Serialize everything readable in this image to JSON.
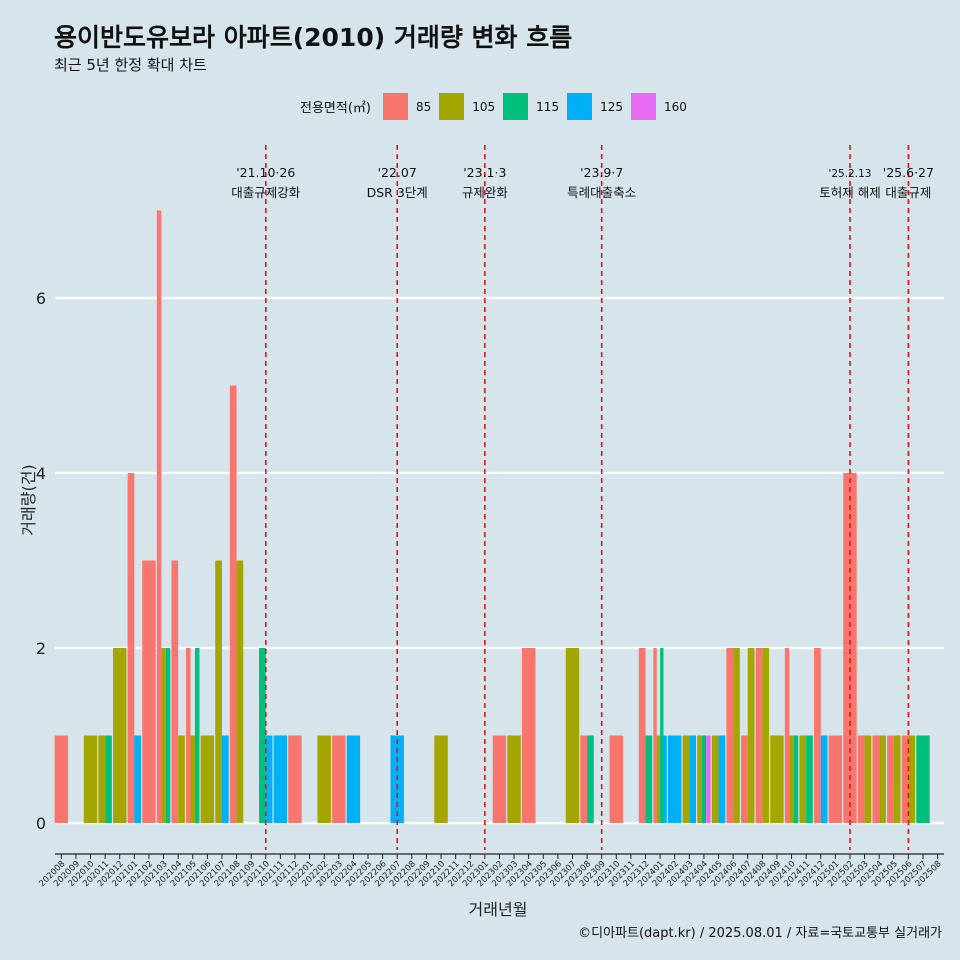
{
  "title": "용이반도유보라 아파트(2010) 거래량 변화 흐름",
  "subtitle": "최근 5년 한정 확대 차트",
  "caption": "©디아파트(dapt.kr) / 2025.08.01 / 자료=국토교통부 실거래가",
  "legend": {
    "title": "전용면적(㎡)",
    "items": [
      {
        "label": "85",
        "color": "#f8766d"
      },
      {
        "label": "105",
        "color": "#a3a500"
      },
      {
        "label": "115",
        "color": "#00bf7d"
      },
      {
        "label": "125",
        "color": "#00b0f6"
      },
      {
        "label": "160",
        "color": "#e76bf3"
      }
    ]
  },
  "chart_data": {
    "type": "bar",
    "xlabel": "거래년월",
    "ylabel": "거래량(건)",
    "ylim": [
      0,
      7
    ],
    "yticks": [
      0,
      2,
      4,
      6
    ],
    "grid": true,
    "legend_position": "top",
    "categories": [
      "202008",
      "202009",
      "202010",
      "202011",
      "202012",
      "202101",
      "202102",
      "202103",
      "202104",
      "202105",
      "202106",
      "202107",
      "202108",
      "202109",
      "202110",
      "202111",
      "202112",
      "202201",
      "202202",
      "202203",
      "202204",
      "202205",
      "202206",
      "202207",
      "202208",
      "202209",
      "202210",
      "202211",
      "202212",
      "202301",
      "202302",
      "202303",
      "202304",
      "202305",
      "202306",
      "202307",
      "202308",
      "202309",
      "202310",
      "202311",
      "202312",
      "202401",
      "202402",
      "202403",
      "202404",
      "202405",
      "202406",
      "202407",
      "202408",
      "202409",
      "202410",
      "202411",
      "202412",
      "202501",
      "202502",
      "202503",
      "202504",
      "202505",
      "202506",
      "202507",
      "202508"
    ],
    "series": [
      {
        "name": "85",
        "values": [
          1,
          0,
          0,
          0,
          0,
          4,
          3,
          7,
          3,
          2,
          0,
          0,
          5,
          0,
          0,
          0,
          1,
          0,
          0,
          1,
          0,
          0,
          0,
          0,
          0,
          0,
          0,
          0,
          0,
          0,
          1,
          0,
          2,
          0,
          0,
          0,
          1,
          0,
          1,
          0,
          2,
          2,
          0,
          0,
          0,
          0,
          2,
          1,
          2,
          0,
          2,
          0,
          2,
          1,
          4,
          1,
          1,
          1,
          1,
          0,
          0
        ]
      },
      {
        "name": "105",
        "values": [
          0,
          0,
          1,
          1,
          2,
          0,
          0,
          2,
          1,
          1,
          1,
          3,
          3,
          0,
          0,
          0,
          0,
          0,
          1,
          0,
          0,
          0,
          0,
          0,
          0,
          0,
          1,
          0,
          0,
          0,
          0,
          1,
          0,
          0,
          0,
          2,
          0,
          0,
          0,
          0,
          0,
          1,
          0,
          1,
          1,
          1,
          2,
          2,
          2,
          1,
          1,
          1,
          0,
          0,
          0,
          1,
          1,
          1,
          1,
          0,
          0
        ]
      },
      {
        "name": "115",
        "values": [
          0,
          0,
          0,
          1,
          0,
          0,
          0,
          2,
          0,
          2,
          0,
          0,
          0,
          0,
          2,
          0,
          0,
          0,
          0,
          0,
          0,
          0,
          0,
          0,
          0,
          0,
          0,
          0,
          0,
          0,
          0,
          0,
          0,
          0,
          0,
          0,
          1,
          0,
          0,
          0,
          1,
          2,
          0,
          0,
          1,
          0,
          0,
          0,
          0,
          0,
          1,
          1,
          0,
          0,
          0,
          0,
          0,
          0,
          0,
          1,
          0
        ]
      },
      {
        "name": "125",
        "values": [
          0,
          0,
          0,
          0,
          0,
          1,
          0,
          0,
          0,
          0,
          0,
          1,
          0,
          0,
          1,
          1,
          0,
          0,
          0,
          0,
          1,
          0,
          0,
          1,
          0,
          0,
          0,
          0,
          0,
          0,
          0,
          0,
          0,
          0,
          0,
          0,
          0,
          0,
          0,
          0,
          0,
          1,
          1,
          1,
          0,
          1,
          0,
          0,
          0,
          0,
          0,
          0,
          1,
          0,
          0,
          0,
          0,
          0,
          0,
          0,
          0
        ]
      },
      {
        "name": "160",
        "values": [
          0,
          0,
          0,
          0,
          0,
          0,
          0,
          0,
          0,
          0,
          0,
          0,
          0,
          0,
          0,
          0,
          0,
          0,
          0,
          0,
          0,
          0,
          0,
          0,
          0,
          0,
          0,
          0,
          0,
          0,
          0,
          0,
          0,
          0,
          0,
          0,
          0,
          0,
          0,
          0,
          0,
          0,
          0,
          0,
          1,
          0,
          0,
          0,
          0,
          0,
          0,
          0,
          0,
          0,
          0,
          0,
          0,
          0,
          0,
          0,
          0
        ]
      }
    ],
    "annotations": [
      {
        "month": "202110",
        "date": "'21.10·26",
        "label": "대출규제강화"
      },
      {
        "month": "202207",
        "date": "'22.07",
        "label": "DSR 3단계"
      },
      {
        "month": "202301",
        "date": "'23.1·3",
        "label": "규제완화"
      },
      {
        "month": "202309",
        "date": "'23.9·7",
        "label": "특례대출축소"
      },
      {
        "month": "202502",
        "date": "'25.2.13",
        "label": "토허제 해제"
      },
      {
        "month": "202506",
        "date": "'25.6·27",
        "label": "대출규제"
      }
    ]
  }
}
